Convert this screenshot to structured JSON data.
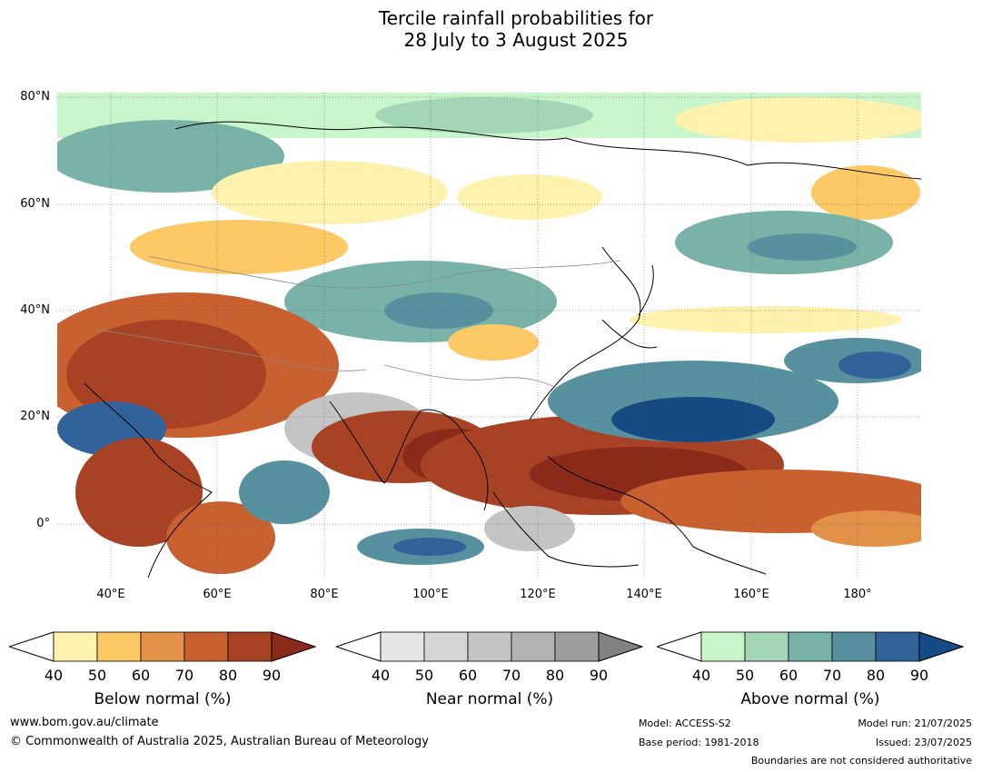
{
  "title": {
    "line1": "Tercile rainfall probabilities for",
    "line2": "28 July to 3 August 2025"
  },
  "map": {
    "lat_labels": [
      "80°N",
      "60°N",
      "40°N",
      "20°N",
      "0°"
    ],
    "lon_labels": [
      "40°E",
      "60°E",
      "80°E",
      "100°E",
      "120°E",
      "140°E",
      "160°E",
      "180°"
    ]
  },
  "legend": {
    "ticks": [
      "40",
      "50",
      "60",
      "70",
      "80",
      "90"
    ],
    "below": {
      "title": "Below normal (%)",
      "colors": [
        "#fff2ae",
        "#fdc966",
        "#e29148",
        "#c9602f",
        "#a84224",
        "#8a2a1a"
      ]
    },
    "near": {
      "title": "Near normal (%)",
      "colors": [
        "#e6e6e6",
        "#d5d5d5",
        "#c4c4c4",
        "#b2b2b2",
        "#9e9e9e",
        "#828282"
      ]
    },
    "above": {
      "title": "Above normal (%)",
      "colors": [
        "#c8f5c9",
        "#a3d6b6",
        "#79b3a8",
        "#57909e",
        "#31639a",
        "#164a82"
      ]
    }
  },
  "footer": {
    "website": "www.bom.gov.au/climate",
    "copyright": "© Commonwealth of Australia 2025, Australian Bureau of Meteorology",
    "model": "Model: ACCESS-S2",
    "base_period": "Base period: 1981-2018",
    "model_run": "Model run: 21/07/2025",
    "issued": "Issued: 23/07/2025",
    "disclaimer": "Boundaries are not considered authoritative"
  }
}
